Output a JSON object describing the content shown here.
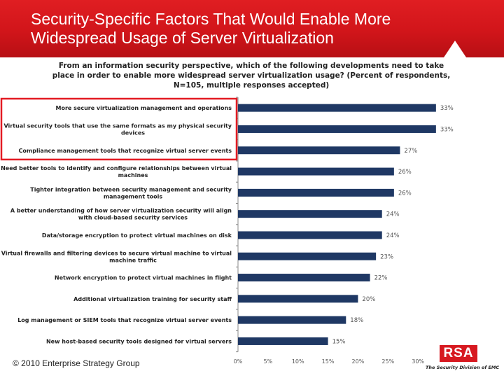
{
  "header": {
    "title": "Security-Specific Factors That Would Enable More\nWidespread Usage of Server Virtualization"
  },
  "chart_data": {
    "type": "bar",
    "orientation": "horizontal",
    "title": "From an information security perspective, which of the following developments need to take place in order to enable more widespread server virtualization usage? (Percent of respondents, N=105, multiple responses accepted)",
    "categories": [
      "More secure virtualization management and operations",
      "Virtual security tools that use the same formats as my physical security devices",
      "Compliance management tools that recognize virtual server events",
      "Need better tools to identify and configure relationships between virtual machines",
      "Tighter integration between security management and security management tools",
      "A better understanding of how server virtualization security will align with cloud-based security services",
      "Data/storage encryption to protect virtual machines on disk",
      "Virtual firewalls and filtering devices to secure virtual machine to virtual machine traffic",
      "Network encryption to protect virtual machines in flight",
      "Additional virtualization training for security staff",
      "Log management or SIEM tools that recognize virtual server events",
      "New host-based security tools designed for virtual servers"
    ],
    "values": [
      33,
      33,
      27,
      26,
      26,
      24,
      24,
      23,
      22,
      20,
      18,
      15
    ],
    "data_labels": [
      "33%",
      "33%",
      "27%",
      "26%",
      "26%",
      "24%",
      "24%",
      "23%",
      "22%",
      "20%",
      "18%",
      "15%"
    ],
    "xlim": [
      0,
      35
    ],
    "x_ticks": [
      0,
      5,
      10,
      15,
      20,
      25,
      30
    ],
    "x_tick_labels": [
      "0%",
      "5%",
      "10%",
      "15%",
      "20%",
      "25%",
      "30%"
    ],
    "bar_color": "#1f3864",
    "highlighted_categories": [
      0,
      1,
      2
    ],
    "highlight_color": "#e31b23"
  },
  "footer": {
    "copyright": "© 2010 Enterprise Strategy Group"
  },
  "logo": {
    "text": "RSA",
    "tagline": "The Security Division of EMC"
  },
  "colors": {
    "brand_red": "#d71920"
  }
}
